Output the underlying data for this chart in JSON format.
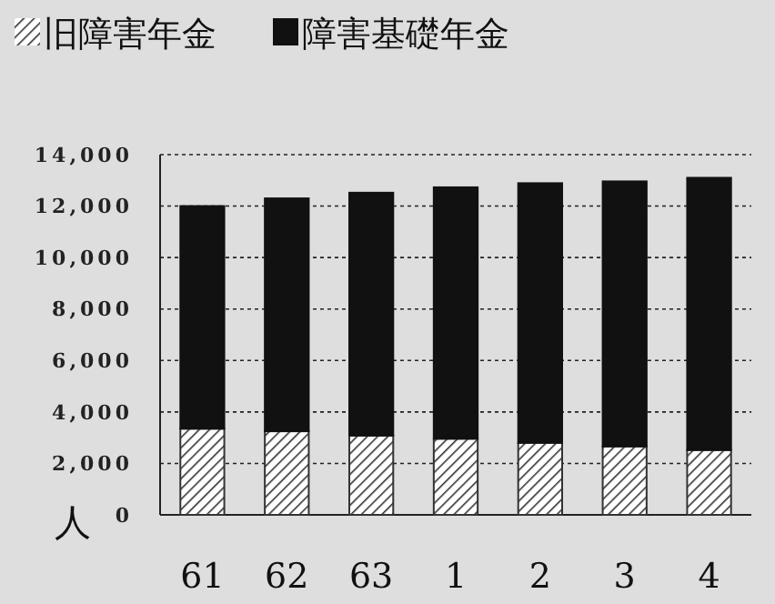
{
  "chart_data": {
    "type": "bar",
    "stacked": true,
    "ylabel": "人",
    "categories": [
      "61",
      "62",
      "63",
      "1",
      "2",
      "3",
      "4"
    ],
    "series": [
      {
        "name": "旧障害年金",
        "color": "#333333",
        "values": [
          3350,
          3250,
          3080,
          2960,
          2800,
          2660,
          2520
        ]
      },
      {
        "name": "障害基礎年金",
        "color": "#111111",
        "values": [
          8650,
          9050,
          9440,
          9770,
          10090,
          10300,
          10580
        ]
      }
    ],
    "ylim": [
      0,
      14000
    ],
    "yticks": [
      0,
      {
        "value": 2000,
        "label": "2,000"
      },
      {
        "value": 4000,
        "label": "4,000"
      },
      {
        "value": 6000,
        "label": "6,000"
      },
      {
        "value": 8000,
        "label": "8,000"
      },
      {
        "value": 10000,
        "label": "10,000"
      },
      {
        "value": 12000,
        "label": "12,000"
      },
      {
        "value": 14000,
        "label": "14,000"
      }
    ],
    "grid": "y",
    "legend": "top left"
  }
}
